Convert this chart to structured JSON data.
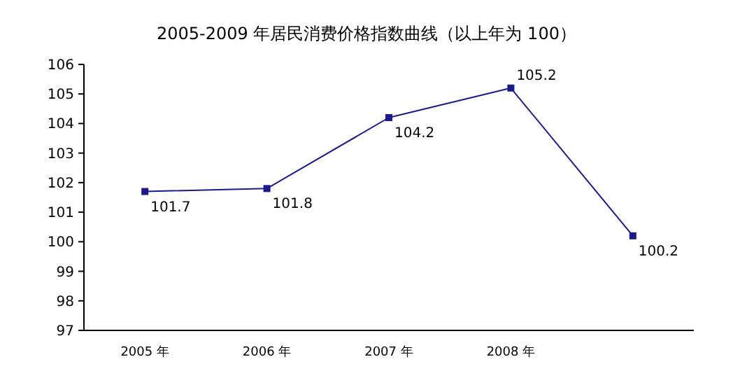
{
  "chart_data": {
    "type": "line",
    "title": "2005-2009 年居民消费价格指数曲线（以上年为 100）",
    "categories": [
      "2005 年",
      "2006 年",
      "2007 年",
      "2008 年",
      null
    ],
    "series": [
      {
        "color": "#1a1a8c",
        "values": [
          101.7,
          101.8,
          104.2,
          105.2,
          100.2
        ]
      }
    ],
    "ylim": [
      97,
      106
    ],
    "yticks": [
      97,
      98,
      99,
      100,
      101,
      102,
      103,
      104,
      105,
      106
    ],
    "data_labels": true,
    "marker": "square",
    "grid": false
  }
}
